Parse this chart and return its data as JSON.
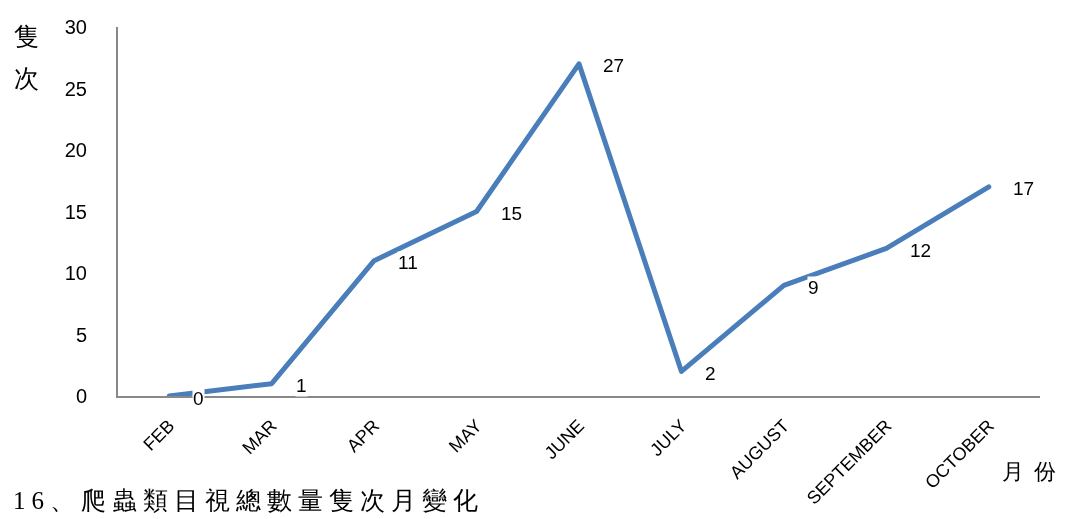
{
  "chart_data": {
    "type": "line",
    "title": "16、爬蟲類目視總數量隻次月變化",
    "ylabel": "隻次",
    "xlabel": "月份",
    "categories": [
      "FEB",
      "MAR",
      "APR",
      "MAY",
      "JUNE",
      "JULY",
      "AUGUST",
      "SEPTEMBER",
      "OCTOBER"
    ],
    "values": [
      0,
      1,
      11,
      15,
      27,
      2,
      9,
      12,
      17
    ],
    "color": "#4a7ebb",
    "ylim": [
      0,
      30
    ],
    "yticks": [
      0,
      5,
      10,
      15,
      20,
      25,
      30
    ],
    "data_labels": true,
    "grid": false
  }
}
